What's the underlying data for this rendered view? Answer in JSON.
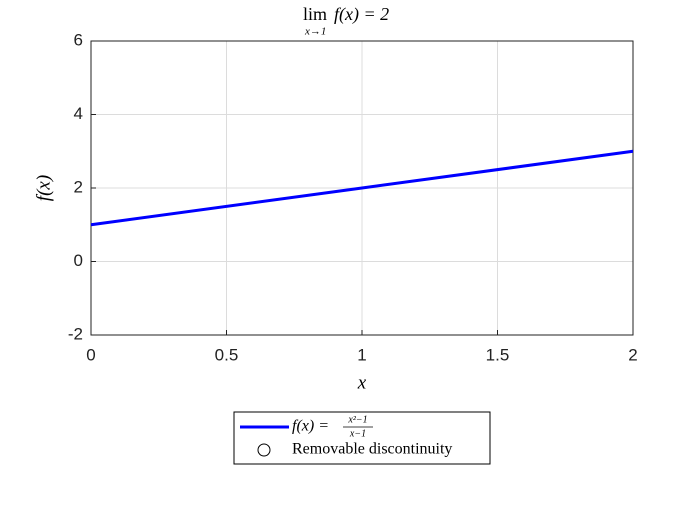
{
  "chart_data": {
    "type": "line",
    "title": "lim",
    "title_subscript": "x→1",
    "title_rest": "f(x) = 2",
    "xlabel": "x",
    "ylabel": "f(x)",
    "xlim": [
      0,
      2
    ],
    "xticks": [
      0,
      0.5,
      1,
      1.5,
      2
    ],
    "ylim": [
      -2,
      6
    ],
    "yticks": [
      -2,
      0,
      2,
      4,
      6
    ],
    "grid": true,
    "legend": "below",
    "series": [
      {
        "name": "f(x) =",
        "name_numerator": "x²−1",
        "name_denominator": "x−1",
        "color": "#0000ff",
        "x": [
          0,
          1,
          2
        ],
        "values": [
          1,
          2,
          3
        ]
      },
      {
        "name": "Removable discontinuity",
        "color": "#000000",
        "marker": "circle",
        "x": [
          1
        ],
        "values": [
          2
        ]
      }
    ]
  }
}
